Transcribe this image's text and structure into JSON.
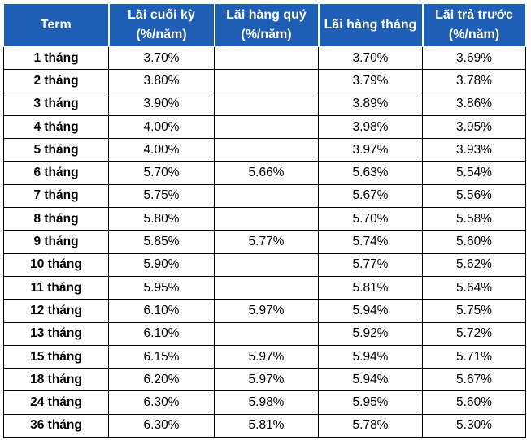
{
  "headers": [
    "Term",
    "Lãi cuối kỳ (%/năm)",
    "Lãi hàng quý (%/năm)",
    "Lãi hàng tháng",
    "Lãi trả trước (%/năm)"
  ],
  "rows": [
    [
      "1 tháng",
      "3.70%",
      "",
      "3.70%",
      "3.69%"
    ],
    [
      "2 tháng",
      "3.80%",
      "",
      "3.79%",
      "3.78%"
    ],
    [
      "3 tháng",
      "3.90%",
      "",
      "3.89%",
      "3.86%"
    ],
    [
      "4 tháng",
      "4.00%",
      "",
      "3.98%",
      "3.95%"
    ],
    [
      "5 tháng",
      "4.00%",
      "",
      "3.97%",
      "3.93%"
    ],
    [
      "6 tháng",
      "5.70%",
      "5.66%",
      "5.63%",
      "5.54%"
    ],
    [
      "7 tháng",
      "5.75%",
      "",
      "5.67%",
      "5.56%"
    ],
    [
      "8 tháng",
      "5.80%",
      "",
      "5.70%",
      "5.58%"
    ],
    [
      "9 tháng",
      "5.85%",
      "5.77%",
      "5.74%",
      "5.60%"
    ],
    [
      "10 tháng",
      "5.90%",
      "",
      "5.77%",
      "5.62%"
    ],
    [
      "11 tháng",
      "5.95%",
      "",
      "5.81%",
      "5.64%"
    ],
    [
      "12 tháng",
      "6.10%",
      "5.97%",
      "5.94%",
      "5.75%"
    ],
    [
      "13 tháng",
      "6.10%",
      "",
      "5.92%",
      "5.72%"
    ],
    [
      "15 tháng",
      "6.15%",
      "5.97%",
      "5.94%",
      "5.71%"
    ],
    [
      "18 tháng",
      "6.20%",
      "5.97%",
      "5.94%",
      "5.67%"
    ],
    [
      "24 tháng",
      "6.30%",
      "5.98%",
      "5.95%",
      "5.60%"
    ],
    [
      "36 tháng",
      "6.30%",
      "5.81%",
      "5.78%",
      "5.30%"
    ]
  ],
  "colors": {
    "header_bg": "#1f5eb5",
    "header_text": "#ffffff",
    "grid": "#000000"
  }
}
